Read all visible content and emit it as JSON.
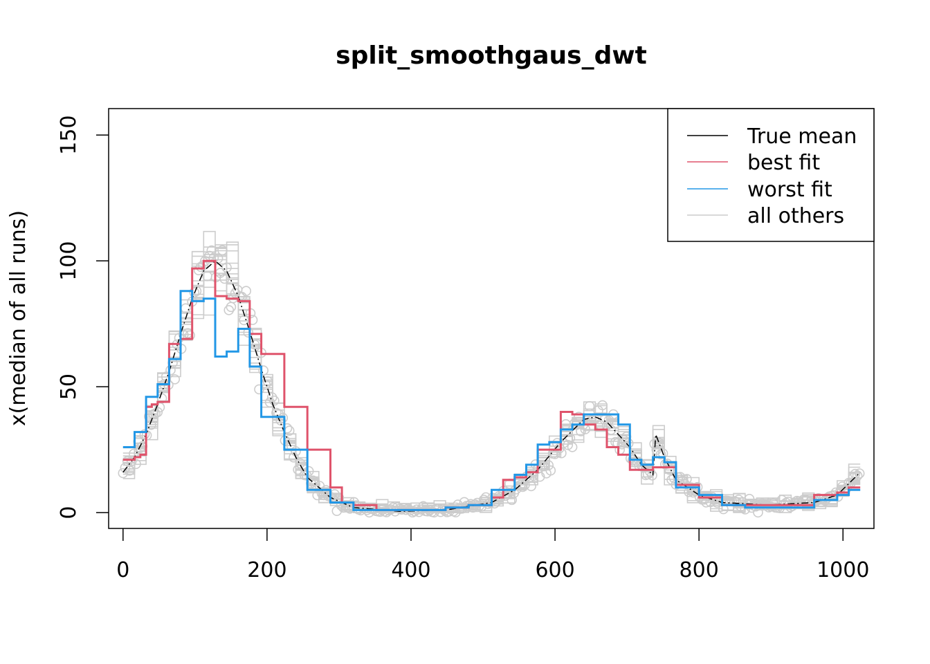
{
  "chart_data": {
    "type": "line",
    "title": "split_smoothgaus_dwt",
    "xlabel": "",
    "ylabel": "x(median of all runs)",
    "xlim": [
      -20,
      1043
    ],
    "ylim": [
      -6.3,
      160.5
    ],
    "x_ticks": [
      0,
      200,
      400,
      600,
      800,
      1000
    ],
    "y_ticks": [
      0,
      50,
      100,
      150
    ],
    "grid": false,
    "legend_position": "top-right",
    "legend": [
      {
        "label": "True mean",
        "color": "#000000"
      },
      {
        "label": "best fit",
        "color": "#DF536B"
      },
      {
        "label": "worst fit",
        "color": "#2297E6"
      },
      {
        "label": "all others",
        "color": "#CCCCCC"
      }
    ],
    "series": [
      {
        "name": "True mean",
        "color": "#000000",
        "style": "dotdash",
        "x": [
          0,
          16,
          32,
          48,
          64,
          80,
          96,
          112,
          128,
          144,
          160,
          176,
          192,
          208,
          224,
          240,
          256,
          288,
          320,
          384,
          448,
          512,
          544,
          576,
          608,
          640,
          656,
          672,
          704,
          720,
          736,
          740,
          752,
          768,
          800,
          832,
          896,
          960,
          992,
          1024
        ],
        "y": [
          16,
          22,
          31,
          43,
          56,
          71,
          85,
          96,
          100,
          96,
          86,
          72,
          57,
          43,
          32,
          22,
          14,
          6,
          2,
          0.5,
          1,
          4,
          9,
          17,
          28,
          37,
          38,
          36,
          26,
          19,
          15,
          31,
          22,
          13,
          7,
          4,
          3,
          4,
          7,
          16
        ]
      },
      {
        "name": "best fit",
        "color": "#DF536B",
        "x": [
          0,
          16,
          24,
          32,
          40,
          48,
          64,
          80,
          96,
          112,
          128,
          144,
          160,
          176,
          192,
          224,
          256,
          288,
          304,
          320,
          352,
          384,
          416,
          448,
          480,
          512,
          528,
          544,
          560,
          576,
          608,
          624,
          640,
          656,
          672,
          688,
          704,
          736,
          768,
          800,
          832,
          864,
          896,
          928,
          960,
          992,
          1008,
          1024
        ],
        "y": [
          21,
          22,
          23,
          42,
          43,
          44,
          67,
          69,
          97,
          100,
          86,
          85,
          84,
          71,
          63,
          42,
          25,
          10,
          4,
          3,
          1,
          1,
          1,
          2,
          3,
          6,
          13,
          14,
          16,
          25,
          40,
          39,
          35,
          33,
          26,
          23,
          17,
          18,
          11,
          6,
          3,
          3,
          3,
          3,
          7,
          8,
          10,
          10
        ]
      },
      {
        "name": "worst fit",
        "color": "#2297E6",
        "x": [
          0,
          16,
          32,
          48,
          64,
          80,
          96,
          112,
          128,
          144,
          160,
          176,
          192,
          224,
          256,
          288,
          320,
          384,
          416,
          448,
          480,
          512,
          544,
          560,
          576,
          592,
          608,
          624,
          640,
          672,
          688,
          704,
          720,
          736,
          752,
          768,
          800,
          832,
          864,
          896,
          960,
          992,
          1008,
          1024
        ],
        "y": [
          26,
          32,
          46,
          51,
          61,
          88,
          84,
          85,
          62,
          64,
          73,
          58,
          38,
          25,
          9,
          4,
          1,
          1,
          1,
          2,
          3,
          9,
          15,
          19,
          27,
          28,
          33,
          35,
          39,
          39,
          35,
          21,
          19,
          22,
          20,
          10,
          7,
          3,
          2,
          2,
          5,
          7,
          9,
          9
        ]
      }
    ],
    "all_others_color": "#CCCCCC"
  }
}
